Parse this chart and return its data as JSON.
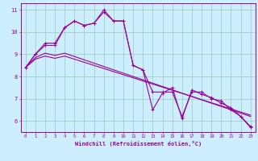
{
  "xlabel": "Windchill (Refroidissement éolien,°C)",
  "background_color": "#cceeff",
  "line_color": "#990099",
  "grid_color": "#99ccbb",
  "xlim": [
    -0.5,
    23.5
  ],
  "ylim": [
    5.5,
    11.3
  ],
  "xticks": [
    0,
    1,
    2,
    3,
    4,
    5,
    6,
    7,
    8,
    9,
    10,
    11,
    12,
    13,
    14,
    15,
    16,
    17,
    18,
    19,
    20,
    21,
    22,
    23
  ],
  "yticks": [
    6,
    7,
    8,
    9,
    10,
    11
  ],
  "series1": [
    8.4,
    9.0,
    9.4,
    9.4,
    10.2,
    10.5,
    10.3,
    10.4,
    10.9,
    10.5,
    10.5,
    8.5,
    8.3,
    7.3,
    7.3,
    7.3,
    6.2,
    7.3,
    7.3,
    7.0,
    6.9,
    6.5,
    6.2,
    5.7
  ],
  "series2": [
    8.4,
    9.0,
    9.5,
    9.5,
    10.2,
    10.5,
    10.3,
    10.4,
    11.0,
    10.5,
    10.5,
    8.5,
    8.3,
    6.5,
    7.25,
    7.5,
    6.1,
    7.4,
    7.2,
    7.05,
    6.8,
    6.6,
    6.2,
    5.75
  ],
  "series_line1": [
    8.4,
    8.85,
    9.05,
    8.95,
    9.05,
    8.9,
    8.75,
    8.6,
    8.45,
    8.3,
    8.15,
    8.0,
    7.85,
    7.7,
    7.55,
    7.4,
    7.25,
    7.1,
    6.95,
    6.8,
    6.65,
    6.5,
    6.35,
    6.2
  ],
  "series_line2": [
    8.4,
    8.78,
    8.92,
    8.82,
    8.92,
    8.78,
    8.64,
    8.5,
    8.36,
    8.22,
    8.08,
    7.94,
    7.8,
    7.66,
    7.52,
    7.38,
    7.24,
    7.1,
    6.96,
    6.82,
    6.68,
    6.54,
    6.4,
    6.26
  ]
}
